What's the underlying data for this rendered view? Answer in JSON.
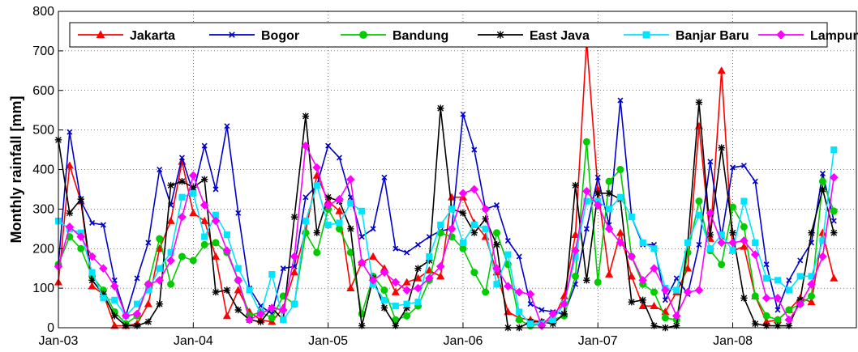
{
  "chart_data": {
    "type": "line",
    "ylabel": "Monthly rainfall [mm]",
    "xlabel": "",
    "ylim": [
      0,
      800
    ],
    "xlim": [
      0,
      71
    ],
    "yticks": [
      0,
      100,
      200,
      300,
      400,
      500,
      600,
      700,
      800
    ],
    "xticks": [
      {
        "pos": 0,
        "label": "Jan-03"
      },
      {
        "pos": 12,
        "label": "Jan-04"
      },
      {
        "pos": 24,
        "label": "Jan-05"
      },
      {
        "pos": 36,
        "label": "Jan-06"
      },
      {
        "pos": 48,
        "label": "Jan-07"
      },
      {
        "pos": 60,
        "label": "Jan-08"
      }
    ],
    "legend_placement": "top, inside plot",
    "grid": true,
    "series": [
      {
        "name": "Jakarta",
        "color": "#ff0000",
        "marker": "triangle",
        "values": [
          115,
          410,
          320,
          105,
          85,
          5,
          5,
          10,
          60,
          200,
          270,
          420,
          290,
          270,
          180,
          30,
          95,
          40,
          20,
          15,
          50,
          140,
          245,
          385,
          320,
          295,
          100,
          165,
          180,
          150,
          90,
          115,
          125,
          145,
          130,
          330,
          330,
          265,
          230,
          140,
          40,
          25,
          20,
          15,
          20,
          80,
          235,
          725,
          350,
          135,
          240,
          130,
          55,
          55,
          40,
          90,
          150,
          510,
          225,
          650,
          195,
          205,
          80,
          15,
          20,
          45,
          75,
          65,
          240,
          125
        ]
      },
      {
        "name": "Bogor",
        "color": "#0000cc",
        "marker": "x",
        "values": [
          160,
          495,
          320,
          265,
          260,
          120,
          30,
          125,
          215,
          400,
          310,
          430,
          340,
          460,
          350,
          510,
          290,
          100,
          55,
          35,
          150,
          155,
          330,
          360,
          460,
          430,
          330,
          230,
          250,
          380,
          200,
          190,
          210,
          230,
          245,
          250,
          540,
          450,
          300,
          310,
          220,
          180,
          60,
          45,
          40,
          35,
          110,
          250,
          380,
          260,
          575,
          280,
          210,
          210,
          70,
          125,
          85,
          210,
          420,
          230,
          405,
          410,
          370,
          160,
          45,
          120,
          170,
          215,
          390,
          270
        ]
      },
      {
        "name": "Bandung",
        "color": "#00cc00",
        "marker": "circle",
        "values": [
          160,
          230,
          200,
          130,
          95,
          40,
          10,
          30,
          110,
          225,
          110,
          180,
          170,
          210,
          215,
          190,
          120,
          30,
          40,
          25,
          80,
          60,
          240,
          190,
          300,
          250,
          190,
          35,
          130,
          95,
          20,
          30,
          55,
          120,
          240,
          230,
          200,
          140,
          90,
          240,
          160,
          20,
          5,
          10,
          20,
          30,
          130,
          470,
          115,
          370,
          400,
          180,
          110,
          90,
          25,
          20,
          190,
          320,
          195,
          160,
          305,
          255,
          80,
          30,
          20,
          45,
          60,
          80,
          370,
          295
        ]
      },
      {
        "name": "East Java",
        "color": "#000000",
        "marker": "asterisk",
        "values": [
          475,
          290,
          325,
          120,
          85,
          30,
          5,
          5,
          15,
          60,
          360,
          370,
          355,
          375,
          90,
          95,
          45,
          20,
          15,
          50,
          20,
          280,
          535,
          240,
          330,
          320,
          250,
          5,
          125,
          50,
          5,
          50,
          150,
          170,
          555,
          300,
          290,
          240,
          275,
          210,
          0,
          0,
          15,
          15,
          10,
          35,
          360,
          120,
          340,
          340,
          325,
          65,
          70,
          5,
          0,
          5,
          215,
          570,
          235,
          455,
          240,
          75,
          10,
          5,
          5,
          5,
          70,
          240,
          350,
          240
        ]
      },
      {
        "name": "Banjar Baru",
        "color": "#00e5ff",
        "marker": "square",
        "values": [
          270,
          250,
          240,
          140,
          75,
          70,
          30,
          60,
          95,
          150,
          190,
          330,
          340,
          230,
          285,
          235,
          150,
          95,
          35,
          135,
          20,
          60,
          270,
          360,
          260,
          265,
          315,
          295,
          110,
          70,
          55,
          60,
          65,
          180,
          260,
          300,
          215,
          260,
          250,
          110,
          185,
          40,
          10,
          10,
          20,
          60,
          180,
          320,
          320,
          300,
          330,
          280,
          215,
          200,
          100,
          95,
          215,
          285,
          200,
          235,
          195,
          320,
          215,
          125,
          120,
          95,
          130,
          130,
          220,
          450
        ]
      },
      {
        "name": "Lampung",
        "color": "#ff00ff",
        "marker": "diamond",
        "values": [
          155,
          255,
          230,
          180,
          150,
          105,
          30,
          35,
          110,
          120,
          170,
          280,
          385,
          310,
          270,
          195,
          120,
          20,
          35,
          50,
          45,
          180,
          460,
          405,
          310,
          325,
          375,
          165,
          120,
          140,
          115,
          95,
          100,
          125,
          155,
          250,
          340,
          350,
          300,
          150,
          105,
          90,
          85,
          5,
          35,
          60,
          195,
          345,
          310,
          250,
          215,
          180,
          120,
          150,
          95,
          30,
          90,
          95,
          290,
          215,
          215,
          220,
          185,
          75,
          75,
          20,
          60,
          110,
          180,
          380
        ]
      }
    ]
  }
}
